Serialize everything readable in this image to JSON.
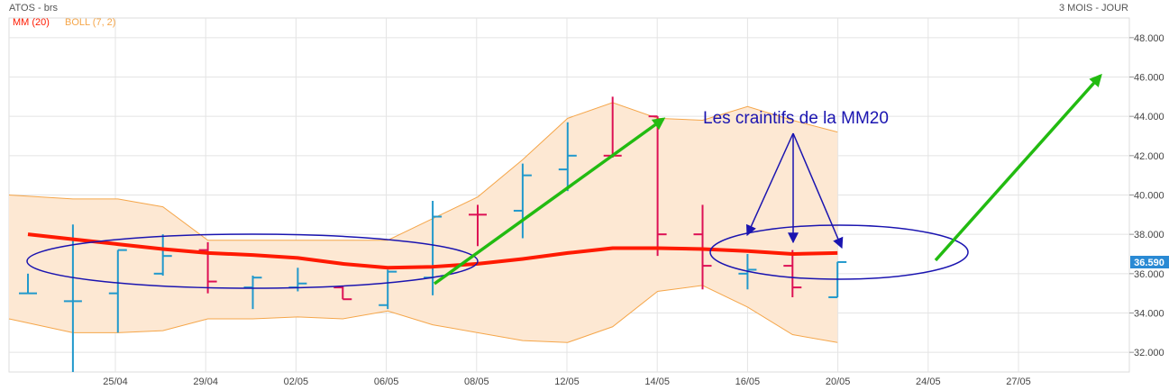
{
  "header": {
    "title": "ATOS - brs",
    "period": "3 MOIS - JOUR"
  },
  "legend": {
    "ma_label": "MM (20)",
    "boll_label": "BOLL (7, 2)"
  },
  "colors": {
    "ma": "#ff1a00",
    "boll_line": "#f5a64a",
    "boll_fill": "#fde8d3",
    "up": "#2299cc",
    "down": "#dd1155",
    "arrow": "#22bb11",
    "annotation": "#1a14b0",
    "last_price_bg": "#2a8ad4"
  },
  "chart_data": {
    "type": "ohlc",
    "ylim": [
      31,
      49
    ],
    "yticks": [
      "32.000",
      "34.000",
      "36.000",
      "38.000",
      "40.000",
      "42.000",
      "44.000",
      "46.000",
      "48.000"
    ],
    "x_labels": [
      "25/04",
      "29/04",
      "02/05",
      "06/05",
      "08/05",
      "12/05",
      "14/05",
      "16/05",
      "20/05",
      "24/05",
      "27/05"
    ],
    "last_price": "36.590",
    "bars": [
      {
        "o": 35.0,
        "h": 36.0,
        "l": 35.0,
        "c": 35.0,
        "dir": "up"
      },
      {
        "o": 34.6,
        "h": 38.5,
        "l": 31.0,
        "c": 34.6,
        "dir": "up"
      },
      {
        "o": 35.0,
        "h": 37.2,
        "l": 33.0,
        "c": 37.2,
        "dir": "up"
      },
      {
        "o": 36.0,
        "h": 38.0,
        "l": 35.9,
        "c": 36.9,
        "dir": "up"
      },
      {
        "o": 37.2,
        "h": 37.6,
        "l": 35.0,
        "c": 35.6,
        "dir": "down"
      },
      {
        "o": 35.3,
        "h": 35.9,
        "l": 34.2,
        "c": 35.8,
        "dir": "up"
      },
      {
        "o": 35.3,
        "h": 36.3,
        "l": 35.1,
        "c": 35.5,
        "dir": "up"
      },
      {
        "o": 35.3,
        "h": 35.4,
        "l": 34.7,
        "c": 34.7,
        "dir": "down"
      },
      {
        "o": 34.4,
        "h": 36.2,
        "l": 34.2,
        "c": 36.1,
        "dir": "up"
      },
      {
        "o": 35.8,
        "h": 39.7,
        "l": 34.9,
        "c": 38.9,
        "dir": "up"
      },
      {
        "o": 39.0,
        "h": 39.5,
        "l": 37.4,
        "c": 39.0,
        "dir": "down"
      },
      {
        "o": 39.2,
        "h": 41.6,
        "l": 37.8,
        "c": 41.0,
        "dir": "up"
      },
      {
        "o": 41.3,
        "h": 43.7,
        "l": 40.2,
        "c": 42.0,
        "dir": "up"
      },
      {
        "o": 42.0,
        "h": 45.0,
        "l": 41.9,
        "c": 42.0,
        "dir": "down"
      },
      {
        "o": 44.0,
        "h": 44.0,
        "l": 36.9,
        "c": 38.0,
        "dir": "down"
      },
      {
        "o": 38.0,
        "h": 39.5,
        "l": 35.2,
        "c": 36.4,
        "dir": "down"
      },
      {
        "o": 36.0,
        "h": 37.0,
        "l": 35.2,
        "c": 36.2,
        "dir": "up"
      },
      {
        "o": 36.4,
        "h": 37.2,
        "l": 34.8,
        "c": 35.3,
        "dir": "down"
      },
      {
        "o": 34.8,
        "h": 36.6,
        "l": 34.8,
        "c": 36.59,
        "dir": "up"
      }
    ],
    "ma20": [
      38.0,
      37.75,
      37.5,
      37.25,
      37.05,
      36.95,
      36.8,
      36.5,
      36.3,
      36.35,
      36.5,
      36.75,
      37.05,
      37.3,
      37.3,
      37.25,
      37.15,
      37.0,
      37.05
    ],
    "boll_upper": [
      40.0,
      39.8,
      39.8,
      39.4,
      37.7,
      37.7,
      37.7,
      37.7,
      37.7,
      38.8,
      39.9,
      41.8,
      43.9,
      44.7,
      43.9,
      43.8,
      44.5,
      43.8,
      43.2
    ],
    "boll_lower": [
      33.7,
      33.0,
      33.0,
      33.1,
      33.7,
      33.7,
      33.8,
      33.7,
      34.1,
      33.4,
      33.0,
      32.6,
      32.5,
      33.3,
      35.1,
      35.4,
      34.3,
      32.9,
      32.5
    ],
    "annotation": "Les craintifs de la MM20"
  }
}
